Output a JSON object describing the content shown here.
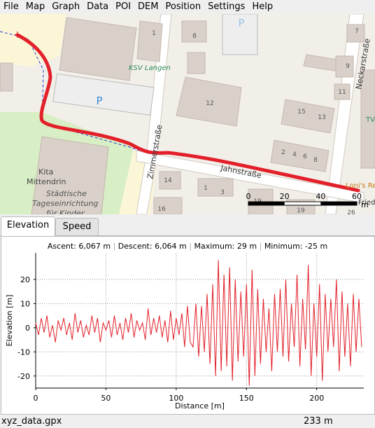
{
  "menu": [
    "File",
    "Map",
    "Graph",
    "Data",
    "POI",
    "DEM",
    "Position",
    "Settings",
    "Help"
  ],
  "map": {
    "streets": [
      "Zimmerstraße",
      "Jahnstraße",
      "Neckarstraße"
    ],
    "places": [
      "KSV Langen",
      "Kita",
      "Mittendrin",
      "Städtische",
      "Tageseinrichtung",
      "für Kinder",
      "Loni's Re",
      "Fried",
      "TV"
    ],
    "parking": "P",
    "house_numbers": [
      "1",
      "8",
      "7",
      "9",
      "11",
      "12",
      "15",
      "13",
      "2",
      "4",
      "6",
      "8",
      "14",
      "1",
      "3",
      "16",
      "19",
      "19",
      "26"
    ],
    "scale": {
      "ticks": [
        0,
        20,
        40,
        60
      ],
      "unit": "m"
    }
  },
  "tabs": [
    "Elevation",
    "Speed"
  ],
  "chart_data": {
    "type": "line",
    "header": [
      "Ascent: 6,067 m",
      "Descent: 6,064 m",
      "Maximum: 29 m",
      "Minimum: -25 m"
    ],
    "xlabel": "Distance [m]",
    "ylabel": "Elevation [m]",
    "xlim": [
      0,
      233.5
    ],
    "ylim": [
      -25,
      31
    ],
    "xticks": [
      0,
      50,
      100,
      150,
      200
    ],
    "yticks": [
      -20,
      -10,
      0,
      10,
      20
    ],
    "grid": true,
    "color": "#e3202a",
    "x": [
      0,
      2,
      4,
      6,
      8,
      10,
      12,
      14,
      16,
      18,
      20,
      22,
      24,
      26,
      28,
      30,
      32,
      34,
      36,
      38,
      40,
      42,
      44,
      46,
      48,
      50,
      52,
      54,
      56,
      58,
      60,
      62,
      64,
      66,
      68,
      70,
      72,
      74,
      76,
      78,
      80,
      82,
      84,
      86,
      88,
      90,
      92,
      94,
      96,
      98,
      100,
      102,
      104,
      106,
      108,
      110,
      112,
      114,
      116,
      118,
      120,
      122,
      124,
      126,
      128,
      130,
      132,
      134,
      136,
      138,
      140,
      142,
      144,
      146,
      148,
      150,
      152,
      154,
      156,
      158,
      160,
      162,
      164,
      166,
      168,
      170,
      172,
      174,
      176,
      178,
      180,
      182,
      184,
      186,
      188,
      190,
      192,
      194,
      196,
      198,
      200,
      202,
      204,
      206,
      208,
      210,
      212,
      214,
      216,
      218,
      220,
      222,
      224,
      226,
      228,
      230,
      232
    ],
    "values": [
      2,
      -3,
      4,
      -2,
      5,
      -4,
      1,
      -6,
      3,
      -1,
      4,
      -3,
      2,
      -5,
      6,
      -2,
      3,
      -4,
      1,
      -3,
      5,
      -2,
      4,
      -6,
      2,
      -1,
      3,
      -4,
      5,
      -3,
      2,
      -5,
      4,
      -2,
      6,
      -4,
      3,
      -1,
      2,
      -5,
      8,
      -3,
      4,
      -2,
      5,
      -4,
      3,
      -6,
      7,
      -5,
      4,
      -3,
      6,
      -8,
      9,
      -6,
      -8,
      10,
      -12,
      9,
      -10,
      14,
      -15,
      18,
      -20,
      28,
      -18,
      22,
      -16,
      25,
      -22,
      20,
      -14,
      15,
      -12,
      18,
      -24,
      24,
      -20,
      16,
      -15,
      12,
      -10,
      8,
      -18,
      14,
      -10,
      16,
      -12,
      20,
      -14,
      10,
      -8,
      22,
      -16,
      12,
      -9,
      26,
      -20,
      10,
      -12,
      18,
      -22,
      14,
      -10,
      12,
      -8,
      20,
      -18,
      15,
      -12,
      10,
      -16,
      14,
      -10,
      12,
      -8
    ]
  },
  "status": {
    "file": "xyz_data.gpx",
    "length": "233 m"
  }
}
